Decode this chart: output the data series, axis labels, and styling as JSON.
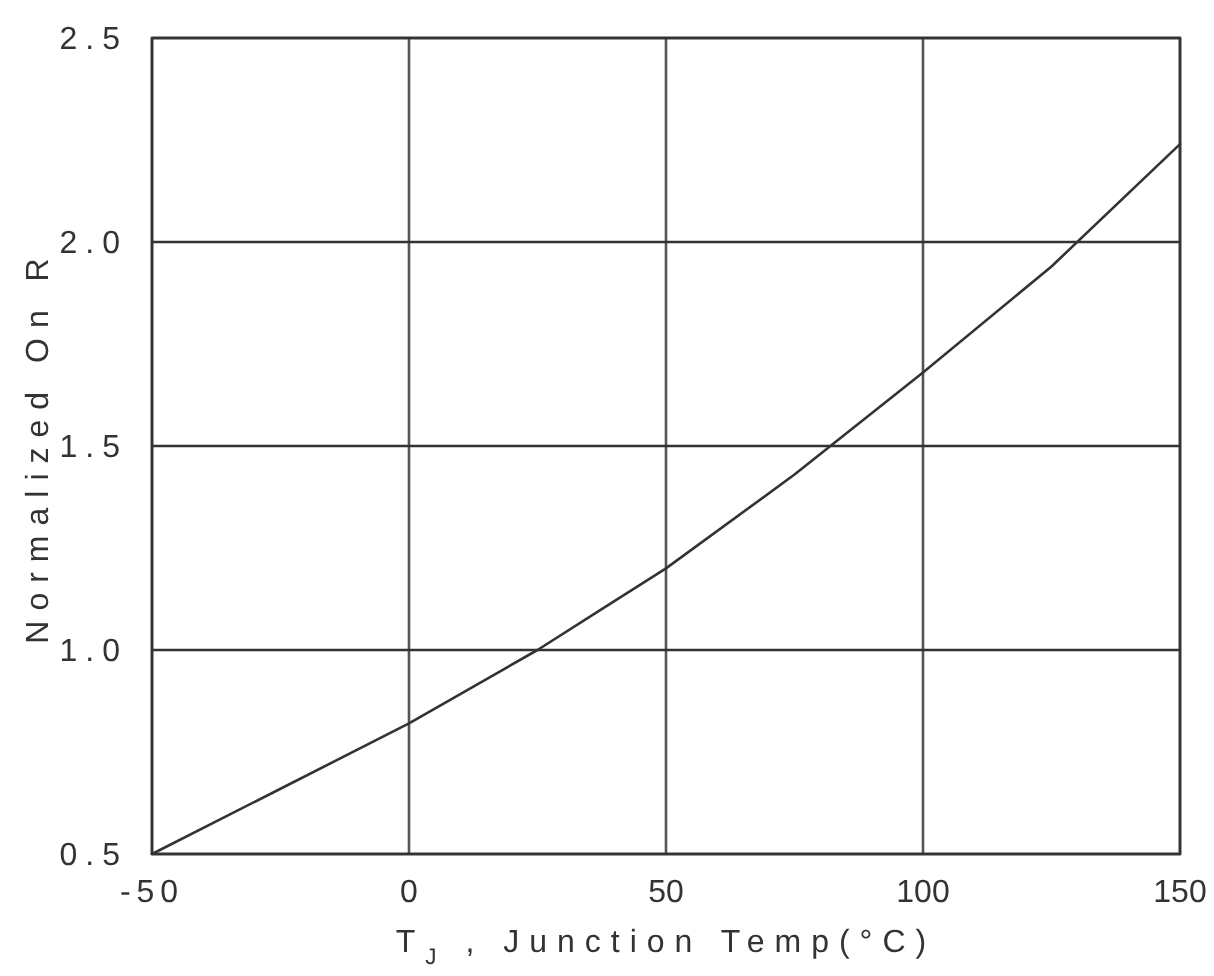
{
  "chart_data": {
    "type": "line",
    "xlabel": "T$_{J}$ , Junction Temp(°C)",
    "ylabel": "Normalized On R",
    "x": [
      -50,
      -25,
      0,
      25,
      37.5,
      50,
      75,
      100,
      125,
      150
    ],
    "series": [
      {
        "color": "#333333",
        "values": [
          0.5,
          0.66,
          0.82,
          1.0,
          1.1,
          1.2,
          1.43,
          1.68,
          1.94,
          2.24
        ]
      }
    ],
    "xlim": [
      -50,
      150
    ],
    "xticks": [
      -50,
      0,
      50,
      100,
      150
    ],
    "ylim": [
      0.5,
      2.5
    ],
    "yticks": [
      {
        "value": 0.5,
        "label": "0.5"
      },
      {
        "value": 1,
        "label": "1.0"
      },
      {
        "value": 1.5,
        "label": "1.5"
      },
      {
        "value": 2,
        "label": "2.0"
      },
      {
        "value": 2.5,
        "label": "2.5"
      }
    ],
    "grid": true,
    "marker": "none",
    "line_style": "solid"
  }
}
